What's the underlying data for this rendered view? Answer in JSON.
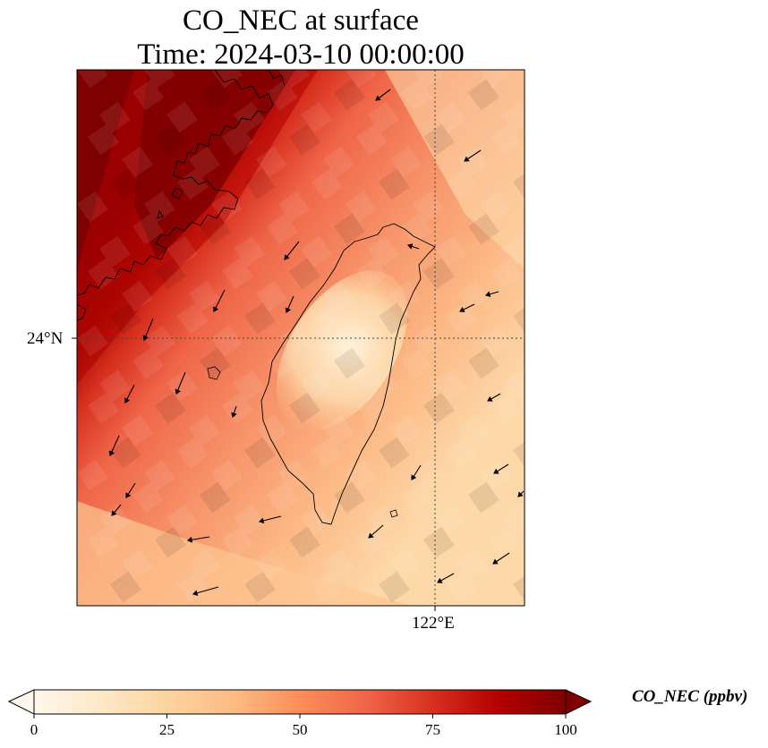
{
  "figure": {
    "title_line1": "CO_NEC at surface",
    "title_line2": "Time: 2024-03-10 00:00:00"
  },
  "map": {
    "variable": "CO_NEC",
    "units": "ppbv",
    "colormap": "OrRd",
    "gridlines": {
      "lat_label": "24°N",
      "lon_label": "122°E"
    },
    "features": [
      "taiwan-coastline",
      "china-coastline",
      "wind-vectors"
    ]
  },
  "colorbar": {
    "label": "CO_NEC (ppbv)",
    "ticks": [
      "0",
      "25",
      "50",
      "75",
      "100"
    ],
    "min": 0,
    "max": 100,
    "extend": "both",
    "colors": [
      "#fff7ec",
      "#fee8c8",
      "#fdd49e",
      "#fdbb84",
      "#fc8d59",
      "#ef6548",
      "#d7301f",
      "#b30000",
      "#7f0000"
    ]
  }
}
